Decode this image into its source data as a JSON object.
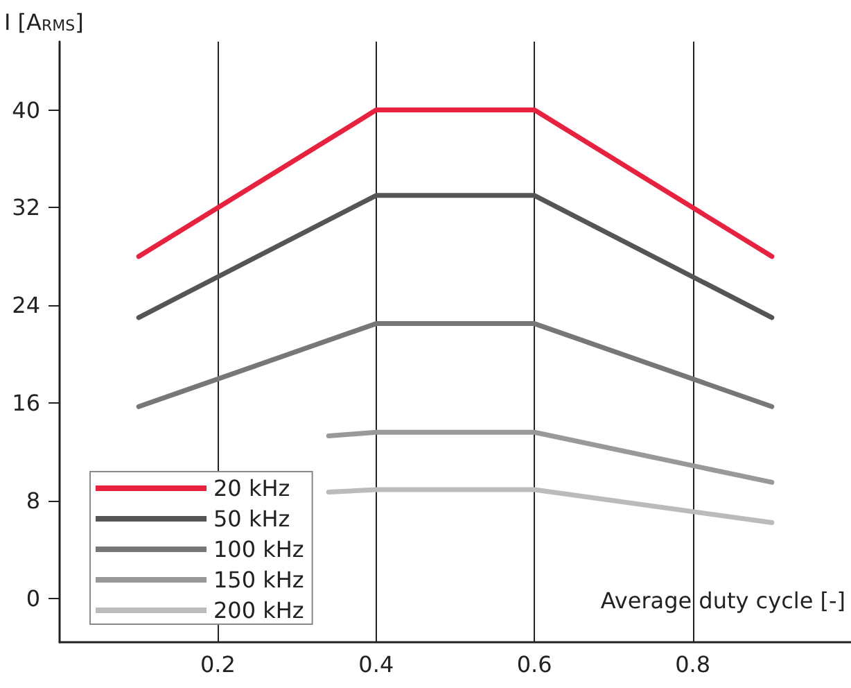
{
  "chart_data": {
    "type": "line",
    "xlabel": "Average duty cycle [-]",
    "ylabel": "I [A$_{RMS}$]",
    "x": [
      0.1,
      0.4,
      0.6,
      0.9
    ],
    "series": [
      {
        "name": "20 kHz",
        "color": "#e8213f",
        "values": [
          28,
          40,
          40,
          28
        ]
      },
      {
        "name": "50 kHz",
        "color": "#555555",
        "values": [
          23,
          33,
          33,
          23
        ]
      },
      {
        "name": "100 kHz",
        "color": "#777777",
        "values": [
          15.7,
          22.5,
          22.5,
          15.7
        ]
      },
      {
        "name": "150 kHz",
        "color": "#999999",
        "x": [
          0.34,
          0.4,
          0.6,
          0.9
        ],
        "values": [
          13.3,
          13.6,
          13.6,
          9.5
        ]
      },
      {
        "name": "200 kHz",
        "color": "#bbbbbb",
        "x": [
          0.34,
          0.4,
          0.6,
          0.9
        ],
        "values": [
          8.7,
          8.9,
          8.9,
          6.2
        ]
      }
    ],
    "xlim": [
      0,
      1
    ],
    "xticks": [
      0.2,
      0.4,
      0.6,
      0.8
    ],
    "ylim": [
      -3.6,
      45.6
    ],
    "yticks": [
      0,
      8,
      16,
      24,
      32,
      40
    ],
    "grid": "x",
    "legend": "bottom left",
    "marker": "none",
    "line_style": "solid"
  }
}
